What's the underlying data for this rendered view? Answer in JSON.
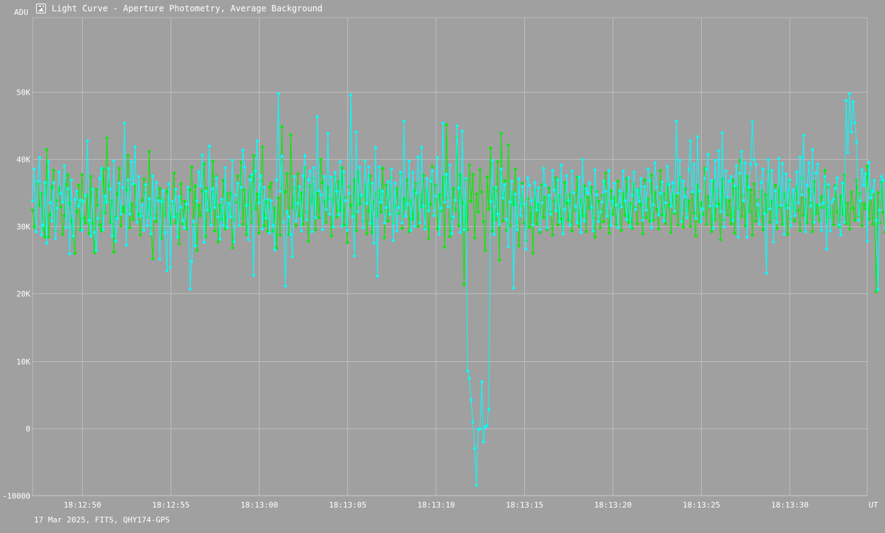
{
  "window": {
    "title": "Light Curve - Aperture Photometry, Average Background",
    "footer": "17 Mar 2025, FITS, QHY174-GPS"
  },
  "colors": {
    "background": "#a0a0a0",
    "grid": "#bdbdbd",
    "axis_text": "#ffffff",
    "series_cyan": "#00ffff",
    "series_green": "#00ee00"
  },
  "chart_data": {
    "type": "line",
    "title": "Light Curve - Aperture Photometry, Average Background",
    "ylabel": "ADU",
    "xlabel": "UT",
    "ylim": [
      -10000,
      61000
    ],
    "xlim": [
      "18:12:47.2",
      "18:13:34.4"
    ],
    "x_ticks": [
      "18:12:50",
      "18:12:55",
      "18:13:00",
      "18:13:05",
      "18:13:10",
      "18:13:15",
      "18:13:20",
      "18:13:25",
      "18:13:30"
    ],
    "y_ticks": [
      {
        "value": -10000,
        "label": "-10000"
      },
      {
        "value": 0,
        "label": "0"
      },
      {
        "value": 10000,
        "label": "10K"
      },
      {
        "value": 20000,
        "label": "20K"
      },
      {
        "value": 30000,
        "label": "30K"
      },
      {
        "value": 40000,
        "label": "40K"
      },
      {
        "value": 50000,
        "label": "50K"
      }
    ],
    "grid": true,
    "sample_interval_s": 0.1,
    "series": [
      {
        "color": "#00ffff",
        "values": [
          33800,
          38500,
          29200,
          36700,
          40200,
          28700,
          30200,
          36500,
          27500,
          39600,
          33500,
          30800,
          36500,
          28200,
          32700,
          38100,
          34900,
          33600,
          39000,
          29800,
          35600,
          25900,
          36900,
          28500,
          34000,
          35200,
          33000,
          33900,
          29400,
          33700,
          34600,
          42700,
          30900,
          28600,
          35500,
          29100,
          26400,
          31200,
          37100,
          38600,
          29500,
          34500,
          33600,
          38600,
          35500,
          28600,
          39700,
          27800,
          31200,
          36400,
          31800,
          35800,
          45300,
          27200,
          36900,
          31800,
          39600,
          36300,
          41800,
          30600,
          37400,
          31500,
          33200,
          29400,
          36200,
          30100,
          34100,
          28900,
          37500,
          31200,
          36500,
          33800,
          25100,
          33700,
          35300,
          29100,
          23400,
          36300,
          23900,
          33700,
          31400,
          35500,
          28400,
          34400,
          32800,
          30900,
          29700,
          33300,
          35800,
          20700,
          24800,
          30800,
          27100,
          33800,
          38100,
          36000,
          40600,
          27600,
          35200,
          32400,
          41900,
          30200,
          35600,
          32800,
          37200,
          31400,
          28100,
          34000,
          30100,
          38700,
          29800,
          33400,
          31400,
          39800,
          27700,
          34600,
          36400,
          30100,
          35800,
          41300,
          38800,
          33100,
          28000,
          36900,
          37700,
          22700,
          38200,
          42700,
          33500,
          37500,
          29600,
          35800,
          31200,
          34000,
          29000,
          33800,
          30100,
          26500,
          36900,
          49700,
          35200,
          40400,
          30600,
          21100,
          32200,
          31400,
          28800,
          25500,
          37400,
          30800,
          33400,
          35900,
          29300,
          37500,
          40500,
          31000,
          36900,
          38200,
          29200,
          38700,
          31300,
          46300,
          35300,
          34700,
          29500,
          37400,
          32500,
          43800,
          31800,
          37300,
          29900,
          38000,
          35200,
          31700,
          39600,
          30000,
          38100,
          33800,
          29400,
          34900,
          49500,
          31500,
          25600,
          44000,
          32200,
          38800,
          34600,
          29800,
          39700,
          33400,
          38800,
          30400,
          36400,
          27500,
          41700,
          22600,
          38800,
          33600,
          35200,
          30500,
          32800,
          36600,
          31800,
          38500,
          27900,
          36400,
          29300,
          32800,
          38000,
          30500,
          45600,
          31500,
          33300,
          39700,
          29400,
          38000,
          30000,
          35000,
          40300,
          30500,
          41700,
          33000,
          29600,
          37100,
          32300,
          36700,
          38300,
          31600,
          34500,
          40200,
          28800,
          32700,
          45300,
          33600,
          37700,
          32900,
          39100,
          28900,
          31400,
          33900,
          44900,
          35700,
          29100,
          44100,
          29500,
          37100,
          8500,
          7400,
          4200,
          900,
          -3000,
          -8500,
          -200,
          -100,
          6900,
          -2000,
          200,
          400,
          2800,
          33700,
          39800,
          28800,
          35800,
          31800,
          30300,
          38500,
          34200,
          36200,
          31000,
          27000,
          33600,
          36700,
          20800,
          34800,
          29500,
          37100,
          31600,
          35900,
          33300,
          26600,
          37200,
          36100,
          33800,
          30200,
          36500,
          32400,
          35700,
          29500,
          33500,
          38600,
          36100,
          29800,
          34600,
          31800,
          38300,
          35400,
          32300,
          36900,
          30700,
          39100,
          28900,
          32500,
          37500,
          33800,
          30200,
          38200,
          35000,
          33000,
          30500,
          37300,
          29100,
          39900,
          30800,
          35600,
          34900,
          36500,
          32800,
          29300,
          38400,
          34700,
          30700,
          32100,
          33600,
          36700,
          35200,
          31500,
          38300,
          30100,
          33700,
          36400,
          33200,
          29800,
          35300,
          32900,
          38200,
          33800,
          31000,
          37200,
          29900,
          34600,
          38000,
          32500,
          35400,
          33700,
          37100,
          30900,
          35900,
          32400,
          38500,
          36800,
          29800,
          33200,
          39400,
          35800,
          31700,
          34900,
          36600,
          30800,
          33500,
          38900,
          36200,
          33000,
          36500,
          32200,
          45600,
          34900,
          39800,
          30700,
          36700,
          34400,
          31300,
          38400,
          42700,
          35100,
          39200,
          31200,
          43300,
          35200,
          30700,
          32600,
          37100,
          38500,
          40700,
          33000,
          36800,
          29700,
          39800,
          33000,
          41200,
          32200,
          43900,
          29900,
          38200,
          34300,
          36700,
          37400,
          30900,
          36000,
          39000,
          28400,
          37900,
          41100,
          33800,
          39400,
          28400,
          35800,
          39200,
          45500,
          39900,
          39200,
          33200,
          30300,
          36500,
          38500,
          31900,
          23000,
          39900,
          32600,
          38300,
          27700,
          35300,
          30600,
          40100,
          33100,
          39300,
          28800,
          37800,
          32700,
          36900,
          30100,
          35400,
          31600,
          38100,
          33500,
          40300,
          34700,
          43500,
          29200,
          36100,
          39400,
          33000,
          41400,
          30600,
          37900,
          39200,
          33200,
          29400,
          33500,
          37400,
          26600,
          36200,
          29300,
          33600,
          34000,
          35700,
          37200,
          30200,
          28700,
          36400,
          30600,
          48700,
          41000,
          49700,
          44000,
          48500,
          45400,
          42500,
          30900,
          33800,
          38400,
          36100,
          37800,
          27800,
          39500,
          34200,
          35200,
          36800,
          30900,
          20600,
          32400,
          37400,
          36800,
          29700,
          34000,
          36800,
          34000,
          30500,
          35900,
          37400,
          33700,
          39900,
          30800,
          36800,
          29000,
          26300,
          44700,
          34400,
          40000,
          39200,
          30900,
          23400,
          36200,
          37000,
          33800,
          49700,
          39600,
          33400,
          40900,
          30800,
          38300,
          28700,
          35200,
          30300,
          36800,
          36200,
          25600,
          26400,
          35500,
          31800,
          38500,
          37700,
          33200,
          45800,
          24900,
          45000,
          44300
        ]
      },
      {
        "color": "#00ee00",
        "values": [
          32400,
          29900,
          31200,
          36300,
          33100,
          34900,
          29700,
          28400,
          41400,
          28400,
          31700,
          35800,
          38300,
          29300,
          33800,
          35700,
          32900,
          28800,
          31600,
          36200,
          37600,
          33400,
          30800,
          28400,
          26000,
          32200,
          36100,
          29500,
          37700,
          31200,
          30500,
          34600,
          28900,
          37400,
          30500,
          26100,
          35500,
          33100,
          30200,
          29300,
          38500,
          32000,
          43100,
          36100,
          30600,
          33800,
          26200,
          31400,
          34800,
          38600,
          30100,
          32800,
          32100,
          35400,
          40500,
          29800,
          33300,
          31000,
          36100,
          32900,
          31700,
          28700,
          33900,
          37000,
          35000,
          31400,
          41100,
          29800,
          25200,
          32700,
          30700,
          34200,
          35600,
          28200,
          33900,
          31600,
          35100,
          36300,
          30300,
          33400,
          37900,
          30500,
          31800,
          27400,
          36300,
          30400,
          33700,
          29600,
          32700,
          35400,
          38800,
          30200,
          36000,
          26400,
          33100,
          31600,
          35200,
          39300,
          28500,
          35700,
          32400,
          30400,
          39700,
          29300,
          37400,
          27700,
          33100,
          31000,
          36800,
          29600,
          34800,
          32700,
          35000,
          26800,
          30900,
          33600,
          37500,
          31200,
          39500,
          30300,
          35400,
          28800,
          33200,
          37400,
          30600,
          40500,
          32600,
          34800,
          29000,
          36700,
          41800,
          30100,
          33700,
          29300,
          35800,
          36400,
          29300,
          32700,
          26800,
          34200,
          28700,
          44800,
          30600,
          35100,
          37800,
          28800,
          43600,
          32800,
          35700,
          30100,
          37800,
          31600,
          34900,
          30300,
          38700,
          32100,
          27800,
          36000,
          33400,
          37100,
          29500,
          34900,
          31300,
          39900,
          36500,
          33700,
          30600,
          35800,
          34100,
          28600,
          33900,
          37300,
          31400,
          36600,
          32400,
          38700,
          30200,
          34300,
          27600,
          35900,
          33100,
          31800,
          36900,
          29400,
          38000,
          33300,
          34500,
          30800,
          36200,
          28900,
          32300,
          37500,
          29100,
          33600,
          34800,
          31500,
          35300,
          32100,
          38600,
          28300,
          36100,
          30800,
          34400,
          37200,
          30500,
          33000,
          35600,
          31900,
          37800,
          29700,
          34100,
          32600,
          36900,
          29200,
          33800,
          31100,
          35200,
          36400,
          30000,
          34600,
          32900,
          37600,
          29900,
          35400,
          28200,
          33300,
          38900,
          31700,
          36100,
          29600,
          34700,
          32300,
          37300,
          26900,
          45100,
          34200,
          28500,
          31200,
          35600,
          32400,
          43200,
          30100,
          37600,
          33500,
          21400,
          36900,
          29500,
          39100,
          33700,
          37700,
          28300,
          34800,
          32100,
          38400,
          35100,
          30700,
          26400,
          37300,
          32600,
          41600,
          29300,
          35700,
          31000,
          39600,
          25000,
          43800,
          30800,
          36800,
          29400,
          42100,
          30100,
          35100,
          33200,
          38500,
          30600,
          27100,
          33000,
          36400,
          30500,
          27900,
          34100,
          29900,
          32800,
          26000,
          35400,
          30400,
          33300,
          29100,
          36200,
          31300,
          34300,
          29500,
          35700,
          32200,
          28700,
          33800,
          37200,
          30200,
          34500,
          31100,
          28900,
          36500,
          33500,
          30900,
          34700,
          29300,
          35100,
          32400,
          37300,
          30000,
          33900,
          31600,
          36000,
          29200,
          34300,
          32700,
          35800,
          31200,
          28400,
          35200,
          33700,
          29800,
          34600,
          30700,
          37900,
          32300,
          29000,
          35300,
          31800,
          34200,
          30300,
          36700,
          33000,
          29400,
          34800,
          31600,
          37100,
          30600,
          33400,
          29700,
          36300,
          32800,
          30400,
          35500,
          33200,
          28900,
          36900,
          31300,
          34100,
          30800,
          37600,
          30900,
          35000,
          32500,
          29600,
          38300,
          31700,
          34800,
          30400,
          36200,
          33100,
          29100,
          35900,
          31900,
          34500,
          30200,
          37300,
          32400,
          29900,
          35600,
          31400,
          33800,
          30000,
          34900,
          32000,
          28600,
          36100,
          30700,
          33500,
          31800,
          38600,
          30300,
          34400,
          32800,
          29200,
          36700,
          31000,
          35300,
          33300,
          28000,
          37000,
          30900,
          34200,
          31700,
          33800,
          30400,
          36800,
          29000,
          35700,
          32600,
          39800,
          31500,
          34600,
          30100,
          37400,
          32200,
          35400,
          28700,
          36300,
          30800,
          33900,
          31400,
          35200,
          29500,
          34700,
          32100,
          38100,
          30600,
          33700,
          31200,
          36100,
          29700,
          35600,
          32900,
          30300,
          34800,
          33100,
          28800,
          36700,
          31100,
          34300,
          30800,
          35900,
          32400,
          29400,
          37200,
          31600,
          34000,
          30500,
          35500,
          33500,
          29200,
          36600,
          31900,
          33100,
          30900,
          34400,
          32800,
          38300,
          30700,
          35800,
          31300,
          33600,
          30200,
          36000,
          32200,
          29900,
          34500,
          31800,
          37700,
          30400,
          33400,
          29600,
          35100,
          32700,
          30900,
          36800,
          31500,
          34900,
          30100,
          33300,
          32600,
          38900,
          31100,
          35300,
          30300,
          34700,
          20300,
          35000,
          30500,
          36600,
          32100,
          29100,
          34300,
          31200,
          37000,
          30800,
          33800,
          32400,
          36400,
          30000,
          34100,
          31700,
          38200,
          29300,
          35700,
          32900,
          30600,
          39400,
          26200,
          35600
        ]
      }
    ]
  }
}
